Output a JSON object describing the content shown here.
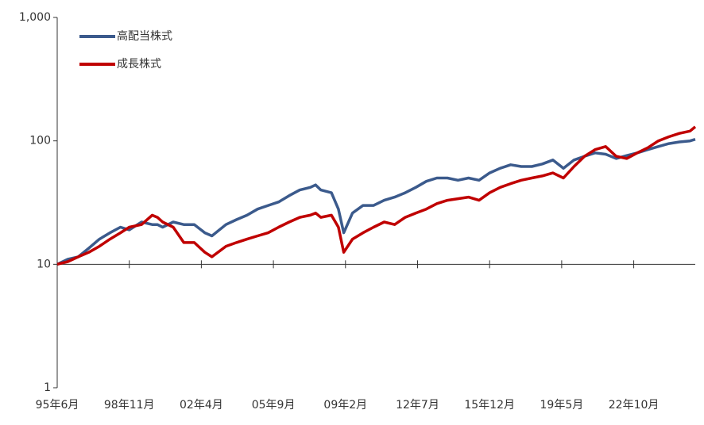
{
  "chart_data": {
    "type": "line",
    "log_y": true,
    "x_axis_crosses": 10,
    "legend": "top-left",
    "x": [
      0,
      6,
      12,
      18,
      24,
      30,
      36,
      41,
      48,
      54,
      57,
      60,
      66,
      72,
      78,
      84,
      88,
      96,
      102,
      108,
      114,
      120,
      126,
      132,
      138,
      144,
      147,
      150,
      156,
      160,
      163,
      168,
      174,
      180,
      186,
      192,
      198,
      204,
      210,
      216,
      222,
      228,
      234,
      240,
      246,
      252,
      258,
      264,
      270,
      276,
      282,
      288,
      294,
      300,
      306,
      312,
      318,
      324,
      330,
      336,
      342,
      348,
      354,
      360,
      363
    ],
    "series": [
      {
        "name": "高配当株式",
        "color": "#3b5a8c",
        "values": [
          10,
          11,
          11.5,
          13.5,
          16,
          18,
          20,
          19,
          22,
          21,
          21,
          20,
          22,
          21,
          21,
          18,
          17,
          21,
          23,
          25,
          28,
          30,
          32,
          36,
          40,
          42,
          44,
          40,
          38,
          28,
          18,
          26,
          30,
          30,
          33,
          35,
          38,
          42,
          47,
          50,
          50,
          48,
          50,
          48,
          55,
          60,
          64,
          62,
          62,
          65,
          70,
          60,
          70,
          75,
          80,
          78,
          72,
          76,
          80,
          85,
          90,
          95,
          98,
          100,
          103
        ]
      },
      {
        "name": "成長株式",
        "color": "#c00000",
        "values": [
          10,
          10.5,
          11.5,
          12.5,
          14,
          16,
          18,
          20,
          21,
          25,
          24,
          22,
          20,
          15,
          15,
          12.5,
          11.5,
          14,
          15,
          16,
          17,
          18,
          20,
          22,
          24,
          25,
          26,
          24,
          25,
          20,
          12.5,
          16,
          18,
          20,
          22,
          21,
          24,
          26,
          28,
          31,
          33,
          34,
          35,
          33,
          38,
          42,
          45,
          48,
          50,
          52,
          55,
          50,
          62,
          75,
          85,
          90,
          75,
          72,
          80,
          88,
          100,
          108,
          115,
          120,
          130
        ]
      }
    ],
    "xlim": [
      0,
      363
    ],
    "xticks": [
      {
        "value": 0,
        "label": "95年6月"
      },
      {
        "value": 41,
        "label": "98年11月"
      },
      {
        "value": 82,
        "label": "02年4月"
      },
      {
        "value": 123,
        "label": "05年9月"
      },
      {
        "value": 164,
        "label": "09年2月"
      },
      {
        "value": 205,
        "label": "12年7月"
      },
      {
        "value": 246,
        "label": "15年12月"
      },
      {
        "value": 287,
        "label": "19年5月"
      },
      {
        "value": 328,
        "label": "22年10月"
      }
    ],
    "ylim": [
      1,
      1000
    ],
    "yticks": [
      1,
      10,
      100,
      {
        "value": 1000,
        "label": "1,000"
      }
    ]
  }
}
